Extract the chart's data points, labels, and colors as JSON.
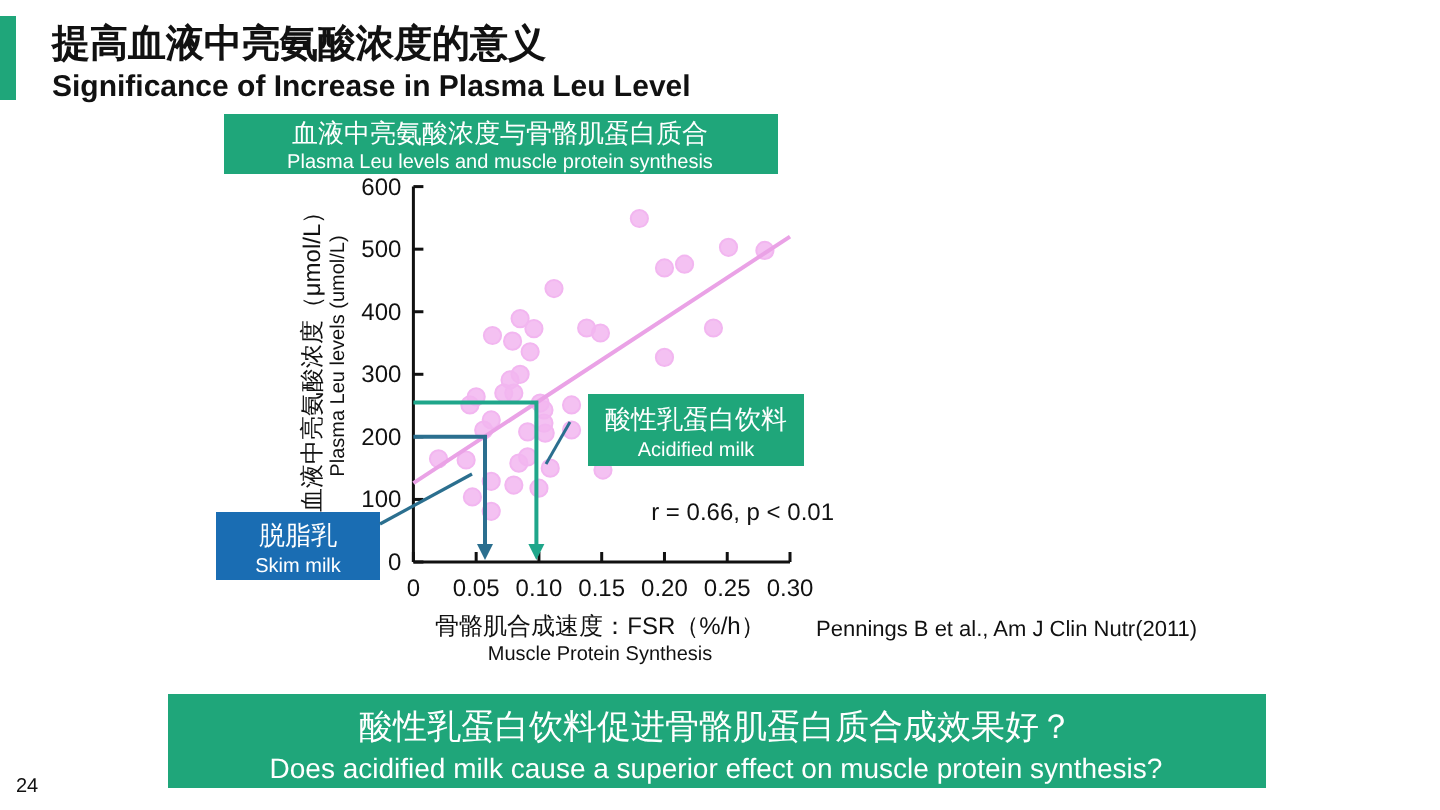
{
  "chart_data": {
    "type": "scatter",
    "title": "提高血液中亮氨酸浓度的意义",
    "subtitle": "Significance of Increase in Plasma Leu Level",
    "xlabel": "骨骼肌合成速度：FSR（%/h）\nMuscle Protein Synthesis",
    "ylabel": "血液中亮氨酸浓度（μmol/L）\nPlasma Leu levels (umol/L)",
    "series": [
      {
        "type": "scatter",
        "color": "#f2b6f0",
        "x": [
          0.18,
          0.2,
          0.216,
          0.251,
          0.28,
          0.112,
          0.239,
          0.2,
          0.138,
          0.149,
          0.063,
          0.085,
          0.096,
          0.079,
          0.093,
          0.085,
          0.077,
          0.072,
          0.08,
          0.045,
          0.05,
          0.062,
          0.056,
          0.091,
          0.104,
          0.104,
          0.101,
          0.105,
          0.126,
          0.126,
          0.109,
          0.084,
          0.091,
          0.08,
          0.1,
          0.151,
          0.062,
          0.047,
          0.062,
          0.02,
          0.042
        ],
        "values": [
          549,
          470,
          476,
          503,
          498,
          437,
          374,
          327,
          374,
          366,
          362,
          389,
          373,
          353,
          336,
          300,
          291,
          270,
          270,
          251,
          264,
          227,
          211,
          208,
          222,
          243,
          254,
          206,
          251,
          211,
          150,
          158,
          168,
          123,
          118,
          147,
          129,
          104,
          81,
          165,
          163
        ]
      },
      {
        "type": "line",
        "color": "#eaa2e6",
        "marker": "none",
        "x": [
          0,
          0.3
        ],
        "values": [
          126,
          520
        ]
      }
    ],
    "xlim": [
      0,
      0.3
    ],
    "ylim": [
      0,
      600
    ],
    "xticks": [
      0,
      {
        "value": 0.05,
        "label": "0.05"
      },
      {
        "value": 0.1,
        "label": "0.10"
      },
      {
        "value": 0.15,
        "label": "0.15"
      },
      {
        "value": 0.2,
        "label": "0.20"
      },
      {
        "value": 0.25,
        "label": "0.25"
      },
      {
        "value": 0.3,
        "label": "0.30"
      }
    ],
    "yticks": [
      0,
      100,
      200,
      300,
      400,
      500,
      600
    ],
    "grid": false,
    "marker": "circle",
    "annotations": [
      "血液中亮氨酸浓度与骨骼肌蛋白质合",
      "Plasma Leu levels and muscle protein synthesis",
      "脱脂乳",
      "Skim milk",
      "酸性乳蛋白饮料",
      "Acidified milk",
      "r = 0.66, p < 0.01",
      "Pennings B et al., Am J Clin Nutr(2011)",
      "酸性乳蛋白饮料促进骨骼肌蛋白质合成效果好？",
      "Does acidified milk cause a superior effect on muscle protein synthesis?",
      "24"
    ]
  }
}
